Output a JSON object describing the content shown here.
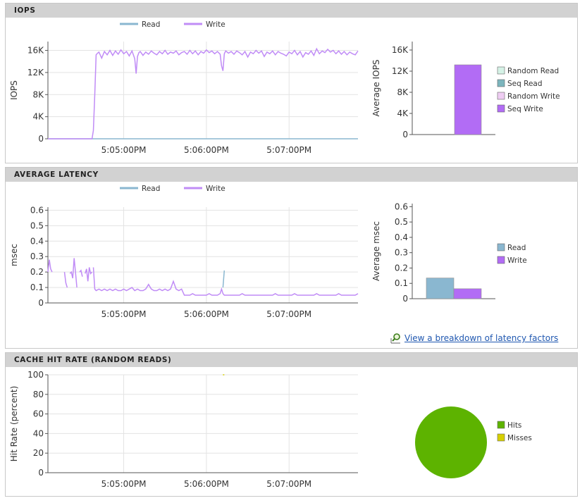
{
  "panels": [
    {
      "title": "IOPS"
    },
    {
      "title": "AVERAGE LATENCY"
    },
    {
      "title": "CACHE HIT RATE (RANDOM READS)"
    }
  ],
  "colors": {
    "read": "#8ab7d0",
    "write": "#c08cf6",
    "seq_write": "#b26cf5",
    "random_read": "#d5f2e6",
    "seq_read": "#7cb5bd",
    "random_write": "#efcdf3",
    "hits": "#5db300",
    "misses": "#d6cf00",
    "grid": "#e3e3e3",
    "axis": "#555555"
  },
  "latency_link": {
    "label": "View a breakdown of latency factors"
  },
  "chart_data": [
    {
      "id": "iops_line",
      "type": "line",
      "ylabel": "IOPS",
      "ylim": [
        0,
        17600
      ],
      "yticks": [
        0,
        4000,
        8000,
        12000,
        16000
      ],
      "ytick_labels": [
        "0",
        "4K",
        "8K",
        "12K",
        "16K"
      ],
      "x_range_sec": [
        -55,
        170
      ],
      "xticks": [
        0,
        60,
        120
      ],
      "xtick_labels": [
        "5:05:00PM",
        "5:06:00PM",
        "5:07:00PM"
      ],
      "legend": [
        "Read",
        "Write"
      ],
      "series": [
        {
          "name": "Read",
          "color_key": "read",
          "x": [
            -55,
            170
          ],
          "y": [
            0,
            0
          ]
        },
        {
          "name": "Write",
          "color_key": "write",
          "x": [
            -55,
            -23,
            -22,
            -21,
            -20,
            -19,
            -18,
            -16,
            -14,
            -12,
            -10,
            -8,
            -6,
            -4,
            -2,
            0,
            2,
            4,
            6,
            8,
            9,
            10,
            11,
            12,
            14,
            16,
            18,
            20,
            22,
            24,
            26,
            28,
            30,
            32,
            34,
            36,
            38,
            40,
            42,
            44,
            46,
            48,
            50,
            52,
            54,
            56,
            58,
            60,
            62,
            64,
            66,
            68,
            70,
            71,
            72,
            73,
            74,
            76,
            78,
            80,
            82,
            84,
            86,
            88,
            90,
            92,
            94,
            96,
            98,
            100,
            102,
            104,
            106,
            108,
            110,
            112,
            114,
            116,
            118,
            120,
            122,
            124,
            126,
            128,
            130,
            132,
            134,
            136,
            138,
            140,
            142,
            144,
            146,
            148,
            150,
            152,
            154,
            156,
            158,
            160,
            162,
            164,
            166,
            168,
            170
          ],
          "y": [
            0,
            0,
            1500,
            8000,
            15200,
            15500,
            15700,
            14600,
            15800,
            15200,
            16000,
            15100,
            15900,
            15300,
            16100,
            15400,
            15800,
            15000,
            15900,
            14500,
            11800,
            14900,
            15600,
            15800,
            15100,
            15700,
            15300,
            15900,
            15500,
            15200,
            15800,
            15400,
            16000,
            15300,
            15700,
            15500,
            15900,
            15200,
            15600,
            15800,
            15300,
            16000,
            15400,
            15900,
            15200,
            15800,
            15500,
            16100,
            15600,
            15900,
            15400,
            15800,
            15300,
            13200,
            12300,
            15400,
            15900,
            15500,
            15800,
            15300,
            15900,
            15600,
            15200,
            15800,
            14800,
            15700,
            15400,
            16000,
            15500,
            15900,
            14900,
            15700,
            15400,
            15900,
            15200,
            15800,
            15500,
            15300,
            15000,
            15700,
            15400,
            16000,
            15200,
            15800,
            14800,
            15600,
            15300,
            15900,
            15100,
            16300,
            15400,
            15900,
            15600,
            16200,
            15700,
            16000,
            15400,
            15900,
            15300,
            15800,
            15200,
            15700,
            15400,
            15200,
            15900
          ]
        }
      ]
    },
    {
      "id": "iops_bar",
      "type": "bar",
      "ylabel": "Average IOPS",
      "ylim": [
        0,
        17600
      ],
      "yticks": [
        0,
        4000,
        8000,
        12000,
        16000
      ],
      "ytick_labels": [
        "0",
        "4K",
        "8K",
        "12K",
        "16K"
      ],
      "categories": [
        "Random Read",
        "Seq Read",
        "Random Write",
        "Seq Write"
      ],
      "values": [
        0,
        0,
        0,
        13200
      ],
      "color_keys": [
        "random_read",
        "seq_read",
        "random_write",
        "seq_write"
      ],
      "legend": [
        "Random Read",
        "Seq Read",
        "Random Write",
        "Seq Write"
      ]
    },
    {
      "id": "latency_line",
      "type": "line",
      "ylabel": "msec",
      "ylim": [
        0,
        0.62
      ],
      "yticks": [
        0,
        0.1,
        0.2,
        0.3,
        0.4,
        0.5,
        0.6
      ],
      "ytick_labels": [
        "0",
        "0.1",
        "0.2",
        "0.3",
        "0.4",
        "0.5",
        "0.6"
      ],
      "x_range_sec": [
        -55,
        170
      ],
      "xticks": [
        0,
        60,
        120
      ],
      "xtick_labels": [
        "5:05:00PM",
        "5:06:00PM",
        "5:07:00PM"
      ],
      "legend": [
        "Read",
        "Write"
      ],
      "series": [
        {
          "name": "Read",
          "color_key": "read",
          "x": [
            72,
            73
          ],
          "y": [
            0.1,
            0.21
          ]
        },
        {
          "name": "Write",
          "color_key": "write",
          "segments": [
            {
              "x": [
                -55,
                -54,
                -53,
                -52
              ],
              "y": [
                0.2,
                0.28,
                0.22,
                0.2
              ]
            },
            {
              "x": [
                -43,
                -42,
                -41
              ],
              "y": [
                0.2,
                0.13,
                0.1
              ]
            },
            {
              "x": [
                -39,
                -38,
                -37,
                -36,
                -35,
                -34
              ],
              "y": [
                0.19,
                0.2,
                0.16,
                0.29,
                0.2,
                0.1
              ]
            },
            {
              "x": [
                -32,
                -31,
                -30
              ],
              "y": [
                0.2,
                0.21,
                0.17
              ]
            },
            {
              "x": [
                -28,
                -27,
                -26,
                -25,
                -24,
                -23
              ],
              "y": [
                0.19,
                0.22,
                0.14,
                0.23,
                0.19,
                0.2
              ]
            },
            {
              "x": [
                -22,
                -21,
                -20,
                -18,
                -16,
                -14,
                -12,
                -10,
                -8,
                -6,
                -4,
                -2,
                0,
                2,
                4,
                6,
                8,
                10,
                12,
                14,
                16,
                18,
                20,
                22,
                24,
                26,
                28,
                30,
                32,
                34,
                36,
                38,
                40,
                42,
                44,
                46,
                48,
                50,
                52,
                54,
                56,
                58,
                60,
                62,
                64,
                66,
                68,
                70,
                71,
                72,
                73,
                74,
                76,
                78,
                80,
                82,
                84,
                86,
                88,
                90,
                92,
                94,
                96,
                98,
                100,
                102,
                104,
                106,
                108,
                110,
                112,
                114,
                116,
                118,
                120,
                122,
                124,
                126,
                128,
                130,
                132,
                134,
                136,
                138,
                140,
                142,
                144,
                146,
                148,
                150,
                152,
                154,
                156,
                158,
                160,
                162,
                164,
                166,
                168,
                170
              ],
              "y": [
                0.23,
                0.09,
                0.08,
                0.09,
                0.08,
                0.09,
                0.08,
                0.09,
                0.08,
                0.09,
                0.08,
                0.08,
                0.09,
                0.08,
                0.09,
                0.1,
                0.08,
                0.09,
                0.08,
                0.08,
                0.09,
                0.12,
                0.09,
                0.08,
                0.08,
                0.09,
                0.08,
                0.09,
                0.08,
                0.09,
                0.14,
                0.09,
                0.08,
                0.09,
                0.05,
                0.05,
                0.05,
                0.06,
                0.05,
                0.05,
                0.05,
                0.05,
                0.05,
                0.06,
                0.05,
                0.05,
                0.05,
                0.06,
                0.09,
                0.06,
                0.05,
                0.05,
                0.05,
                0.05,
                0.05,
                0.05,
                0.05,
                0.06,
                0.05,
                0.05,
                0.05,
                0.05,
                0.05,
                0.05,
                0.05,
                0.05,
                0.05,
                0.05,
                0.05,
                0.06,
                0.05,
                0.05,
                0.05,
                0.05,
                0.05,
                0.05,
                0.06,
                0.05,
                0.05,
                0.05,
                0.05,
                0.05,
                0.05,
                0.05,
                0.06,
                0.05,
                0.05,
                0.05,
                0.05,
                0.05,
                0.05,
                0.05,
                0.06,
                0.05,
                0.05,
                0.05,
                0.05,
                0.05,
                0.05,
                0.06
              ]
            }
          ]
        }
      ]
    },
    {
      "id": "latency_bar",
      "type": "bar",
      "ylabel": "Average msec",
      "ylim": [
        0,
        0.62
      ],
      "yticks": [
        0,
        0.1,
        0.2,
        0.3,
        0.4,
        0.5,
        0.6
      ],
      "ytick_labels": [
        "0",
        "0.1",
        "0.2",
        "0.3",
        "0.4",
        "0.5",
        "0.6"
      ],
      "categories": [
        "Read",
        "Write"
      ],
      "values": [
        0.135,
        0.065
      ],
      "color_keys": [
        "read",
        "seq_write"
      ],
      "legend": [
        "Read",
        "Write"
      ]
    },
    {
      "id": "cache_line",
      "type": "line",
      "ylabel": "Hit Rate (percent)",
      "ylim": [
        0,
        100
      ],
      "yticks": [
        0,
        20,
        40,
        60,
        80,
        100
      ],
      "ytick_labels": [
        "0",
        "20",
        "40",
        "60",
        "80",
        "100"
      ],
      "x_range_sec": [
        -55,
        170
      ],
      "xticks": [
        0,
        60,
        120
      ],
      "xtick_labels": [
        "5:05:00PM",
        "5:06:00PM",
        "5:07:00PM"
      ],
      "series": [
        {
          "name": "Hits",
          "color_key": "misses",
          "x": [
            72,
            73
          ],
          "y": [
            100,
            100
          ]
        }
      ]
    },
    {
      "id": "cache_pie",
      "type": "pie",
      "categories": [
        "Hits",
        "Misses"
      ],
      "values": [
        100,
        0
      ],
      "color_keys": [
        "hits",
        "misses"
      ],
      "legend": [
        "Hits",
        "Misses"
      ]
    }
  ]
}
